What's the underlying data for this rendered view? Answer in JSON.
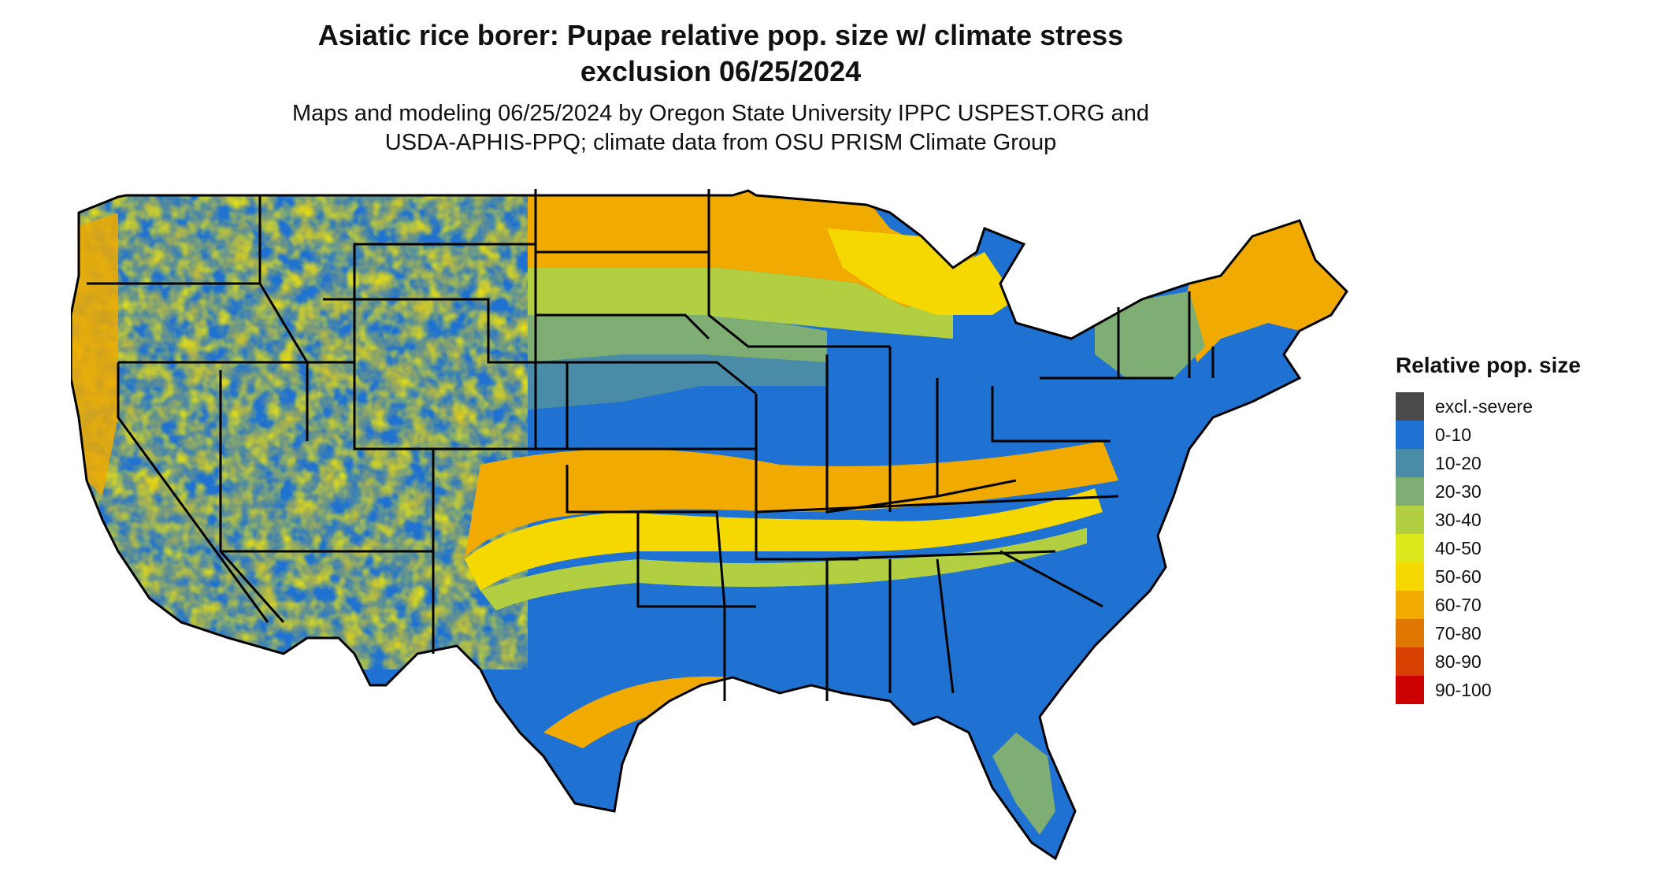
{
  "header": {
    "title_line1": "Asiatic rice borer: Pupae relative pop. size w/ climate stress",
    "title_line2": "exclusion 06/25/2024",
    "subtitle_line1": "Maps and modeling 06/25/2024 by Oregon State University IPPC USPEST.ORG and",
    "subtitle_line2": "USDA-APHIS-PPQ; climate data from OSU PRISM Climate Group"
  },
  "legend": {
    "title": "Relative pop. size",
    "items": [
      {
        "label": "excl.-severe",
        "color": "#4a4a4a"
      },
      {
        "label": "0-10",
        "color": "#1f72d1"
      },
      {
        "label": "10-20",
        "color": "#4a8ca8"
      },
      {
        "label": "20-30",
        "color": "#7fae74"
      },
      {
        "label": "30-40",
        "color": "#b2cf42"
      },
      {
        "label": "40-50",
        "color": "#dde81c"
      },
      {
        "label": "50-60",
        "color": "#f5d800"
      },
      {
        "label": "60-70",
        "color": "#f0aa00"
      },
      {
        "label": "70-80",
        "color": "#e07800"
      },
      {
        "label": "80-90",
        "color": "#d84000"
      },
      {
        "label": "90-100",
        "color": "#cc0000"
      }
    ]
  },
  "map": {
    "region": "contiguous United States",
    "colors": {
      "low": "#1f72d1",
      "low_mid": "#4a8ca8",
      "mid": "#7fae74",
      "mid_high": "#b2cf42",
      "yellow": "#f5d800",
      "orange": "#f0aa00",
      "border": "#000000"
    }
  }
}
